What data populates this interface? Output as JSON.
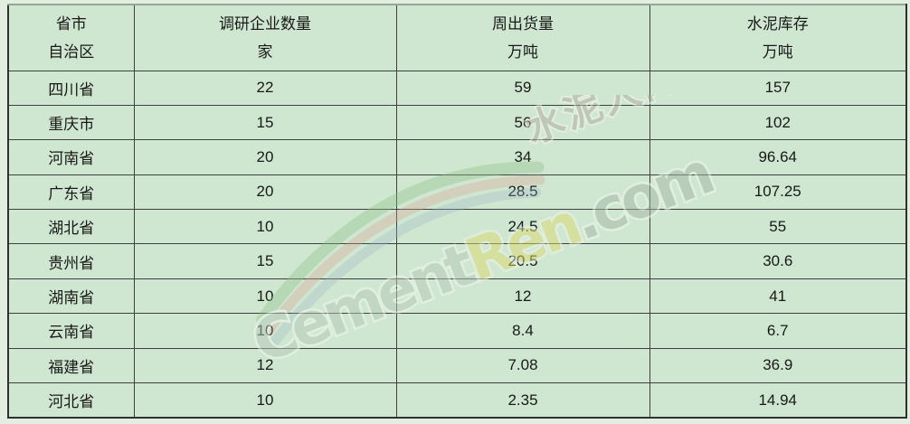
{
  "page": {
    "background": "#e2efe0",
    "cell_background": "#cfe7d0",
    "border_color": "#3f3f3f",
    "text_color": "#181818"
  },
  "table": {
    "columns": [
      {
        "title": "省市",
        "unit": "自治区"
      },
      {
        "title": "调研企业数量",
        "unit": "家"
      },
      {
        "title": "周出货量",
        "unit": "万吨"
      },
      {
        "title": "水泥库存",
        "unit": "万吨"
      }
    ]
  },
  "chart_data": {
    "type": "table",
    "columns": [
      "省市自治区",
      "调研企业数量 家",
      "周出货量 万吨",
      "水泥库存 万吨"
    ],
    "rows": [
      [
        "四川省",
        22,
        59,
        157
      ],
      [
        "重庆市",
        15,
        56,
        102
      ],
      [
        "河南省",
        20,
        34,
        96.64
      ],
      [
        "广东省",
        20,
        28.5,
        107.25
      ],
      [
        "湖北省",
        10,
        24.5,
        55
      ],
      [
        "贵州省",
        15,
        20.5,
        30.6
      ],
      [
        "湖南省",
        10,
        12,
        41
      ],
      [
        "云南省",
        10,
        8.4,
        6.7
      ],
      [
        "福建省",
        12,
        7.08,
        36.9
      ],
      [
        "河北省",
        10,
        2.35,
        14.94
      ]
    ]
  },
  "watermark": {
    "brand_en_1": "Cement",
    "brand_en_2": "Ren",
    "brand_en_3": ".com",
    "brand_cn": "水泥人网",
    "colors": {
      "cement": "#b7c9b7",
      "ren": "#dcd96e",
      "dotcom": "#a3b6a6",
      "chinese": "#b3a8a0",
      "halo": "#f2f7f0",
      "swoosh_green": "#8fbf8a",
      "swoosh_red": "#d89f93",
      "swoosh_blue": "#9db4c6"
    }
  }
}
